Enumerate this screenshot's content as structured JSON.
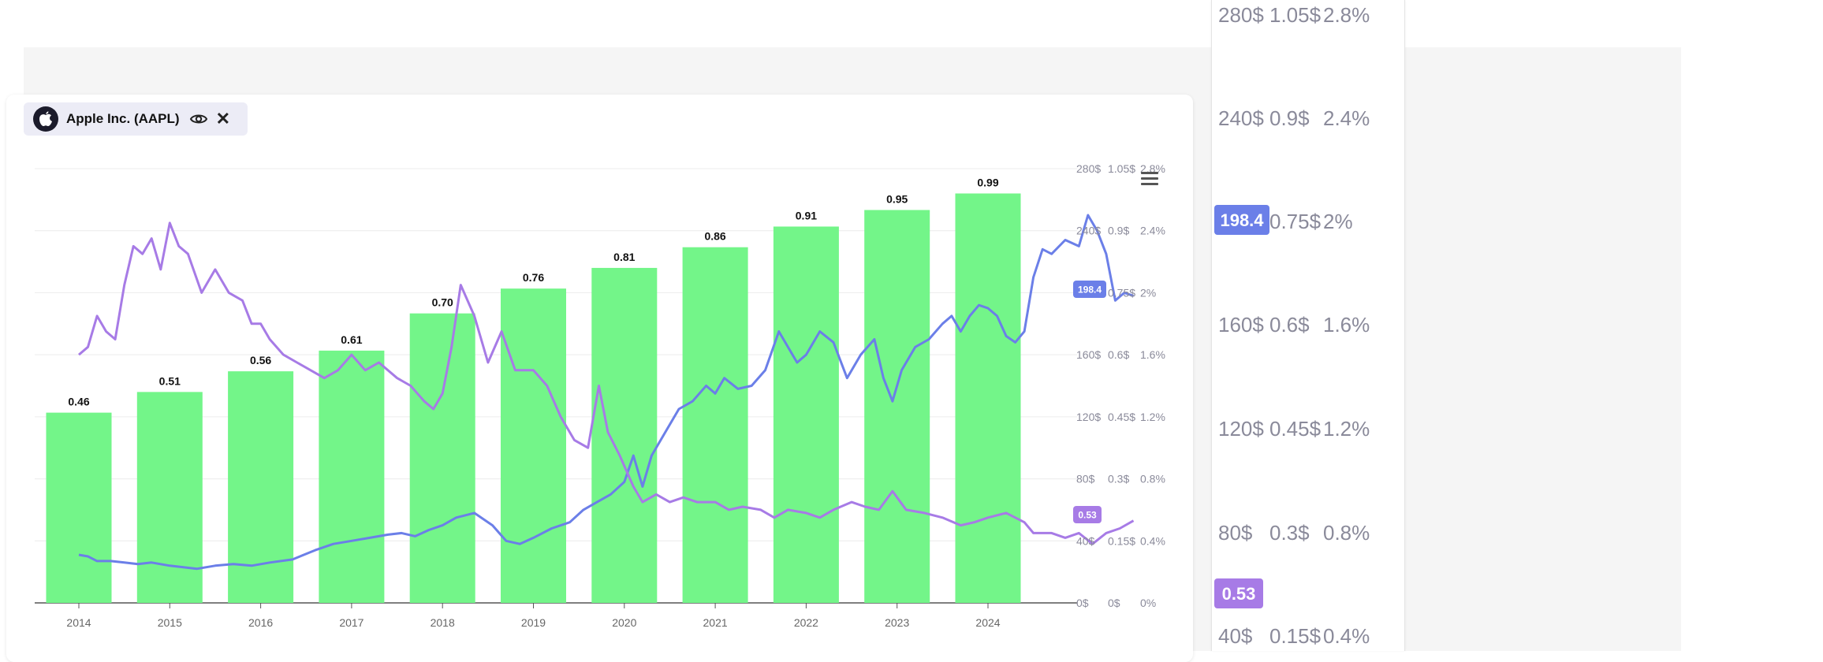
{
  "instrument": {
    "name": "Apple Inc. (AAPL)",
    "logo_icon": "apple-logo-icon",
    "visibility_icon": "eye-icon",
    "close_symbol": "✕"
  },
  "chart_data": {
    "type": "bar-line-combo",
    "categories": [
      "2014",
      "2015",
      "2016",
      "2017",
      "2018",
      "2019",
      "2020",
      "2021",
      "2022",
      "2023",
      "2024"
    ],
    "series": [
      {
        "kind": "bar",
        "axis": "dollars",
        "color": "#73f589",
        "values": [
          0.46,
          0.51,
          0.56,
          0.61,
          0.7,
          0.76,
          0.81,
          0.86,
          0.91,
          0.95,
          0.99
        ],
        "labels": [
          "0.46",
          "0.51",
          "0.56",
          "0.61",
          "0.70",
          "0.76",
          "0.81",
          "0.86",
          "0.91",
          "0.95",
          "0.99"
        ]
      },
      {
        "kind": "line",
        "axis": "price",
        "color": "#6b7fe8",
        "last_value_label": "198.4",
        "points": [
          [
            2014.0,
            31
          ],
          [
            2014.1,
            30
          ],
          [
            2014.2,
            27
          ],
          [
            2014.35,
            27
          ],
          [
            2014.5,
            26
          ],
          [
            2014.65,
            25
          ],
          [
            2014.8,
            26
          ],
          [
            2015.0,
            24
          ],
          [
            2015.15,
            23
          ],
          [
            2015.3,
            22
          ],
          [
            2015.5,
            24
          ],
          [
            2015.7,
            25
          ],
          [
            2015.9,
            24
          ],
          [
            2016.1,
            26
          ],
          [
            2016.35,
            28
          ],
          [
            2016.6,
            34
          ],
          [
            2016.8,
            38
          ],
          [
            2017.0,
            40
          ],
          [
            2017.2,
            42
          ],
          [
            2017.4,
            44
          ],
          [
            2017.55,
            45
          ],
          [
            2017.7,
            43
          ],
          [
            2017.85,
            47
          ],
          [
            2018.0,
            50
          ],
          [
            2018.15,
            55
          ],
          [
            2018.35,
            58
          ],
          [
            2018.55,
            50
          ],
          [
            2018.7,
            40
          ],
          [
            2018.85,
            38
          ],
          [
            2019.0,
            42
          ],
          [
            2019.2,
            48
          ],
          [
            2019.4,
            52
          ],
          [
            2019.55,
            60
          ],
          [
            2019.7,
            65
          ],
          [
            2019.85,
            70
          ],
          [
            2020.0,
            78
          ],
          [
            2020.1,
            95
          ],
          [
            2020.2,
            75
          ],
          [
            2020.3,
            95
          ],
          [
            2020.45,
            110
          ],
          [
            2020.6,
            125
          ],
          [
            2020.75,
            130
          ],
          [
            2020.9,
            140
          ],
          [
            2021.0,
            135
          ],
          [
            2021.1,
            145
          ],
          [
            2021.25,
            138
          ],
          [
            2021.4,
            140
          ],
          [
            2021.55,
            150
          ],
          [
            2021.7,
            175
          ],
          [
            2021.8,
            165
          ],
          [
            2021.9,
            155
          ],
          [
            2022.0,
            160
          ],
          [
            2022.15,
            175
          ],
          [
            2022.3,
            168
          ],
          [
            2022.45,
            145
          ],
          [
            2022.6,
            160
          ],
          [
            2022.75,
            170
          ],
          [
            2022.85,
            145
          ],
          [
            2022.95,
            130
          ],
          [
            2023.05,
            150
          ],
          [
            2023.2,
            165
          ],
          [
            2023.35,
            170
          ],
          [
            2023.5,
            180
          ],
          [
            2023.6,
            185
          ],
          [
            2023.7,
            175
          ],
          [
            2023.8,
            185
          ],
          [
            2023.9,
            192
          ],
          [
            2024.0,
            190
          ],
          [
            2024.1,
            185
          ],
          [
            2024.2,
            172
          ],
          [
            2024.3,
            168
          ],
          [
            2024.4,
            175
          ],
          [
            2024.5,
            210
          ],
          [
            2024.6,
            228
          ],
          [
            2024.7,
            225
          ],
          [
            2024.85,
            234
          ],
          [
            2025.0,
            230
          ],
          [
            2025.1,
            250
          ],
          [
            2025.2,
            240
          ],
          [
            2025.3,
            225
          ],
          [
            2025.4,
            195
          ],
          [
            2025.5,
            200
          ],
          [
            2025.6,
            198
          ]
        ]
      },
      {
        "kind": "line",
        "axis": "percent",
        "color": "#a77be6",
        "last_value_label": "0.53",
        "points": [
          [
            2014.0,
            1.6
          ],
          [
            2014.1,
            1.65
          ],
          [
            2014.2,
            1.85
          ],
          [
            2014.3,
            1.75
          ],
          [
            2014.4,
            1.7
          ],
          [
            2014.5,
            2.05
          ],
          [
            2014.6,
            2.3
          ],
          [
            2014.7,
            2.25
          ],
          [
            2014.8,
            2.35
          ],
          [
            2014.9,
            2.15
          ],
          [
            2015.0,
            2.45
          ],
          [
            2015.1,
            2.3
          ],
          [
            2015.2,
            2.25
          ],
          [
            2015.35,
            2.0
          ],
          [
            2015.5,
            2.15
          ],
          [
            2015.65,
            2.0
          ],
          [
            2015.8,
            1.95
          ],
          [
            2015.9,
            1.8
          ],
          [
            2016.0,
            1.8
          ],
          [
            2016.1,
            1.7
          ],
          [
            2016.25,
            1.6
          ],
          [
            2016.4,
            1.55
          ],
          [
            2016.55,
            1.5
          ],
          [
            2016.7,
            1.45
          ],
          [
            2016.85,
            1.5
          ],
          [
            2017.0,
            1.6
          ],
          [
            2017.15,
            1.5
          ],
          [
            2017.3,
            1.55
          ],
          [
            2017.5,
            1.45
          ],
          [
            2017.65,
            1.4
          ],
          [
            2017.8,
            1.3
          ],
          [
            2017.9,
            1.25
          ],
          [
            2018.0,
            1.35
          ],
          [
            2018.1,
            1.65
          ],
          [
            2018.2,
            2.05
          ],
          [
            2018.35,
            1.85
          ],
          [
            2018.5,
            1.55
          ],
          [
            2018.65,
            1.75
          ],
          [
            2018.8,
            1.5
          ],
          [
            2019.0,
            1.5
          ],
          [
            2019.15,
            1.4
          ],
          [
            2019.3,
            1.2
          ],
          [
            2019.45,
            1.05
          ],
          [
            2019.6,
            1.0
          ],
          [
            2019.72,
            1.4
          ],
          [
            2019.82,
            1.1
          ],
          [
            2019.95,
            0.95
          ],
          [
            2020.1,
            0.75
          ],
          [
            2020.2,
            0.65
          ],
          [
            2020.35,
            0.7
          ],
          [
            2020.5,
            0.65
          ],
          [
            2020.65,
            0.68
          ],
          [
            2020.8,
            0.65
          ],
          [
            2021.0,
            0.65
          ],
          [
            2021.15,
            0.6
          ],
          [
            2021.3,
            0.62
          ],
          [
            2021.5,
            0.6
          ],
          [
            2021.65,
            0.55
          ],
          [
            2021.8,
            0.6
          ],
          [
            2022.0,
            0.58
          ],
          [
            2022.15,
            0.55
          ],
          [
            2022.3,
            0.6
          ],
          [
            2022.5,
            0.65
          ],
          [
            2022.65,
            0.62
          ],
          [
            2022.8,
            0.6
          ],
          [
            2022.95,
            0.72
          ],
          [
            2023.1,
            0.6
          ],
          [
            2023.3,
            0.58
          ],
          [
            2023.5,
            0.55
          ],
          [
            2023.7,
            0.5
          ],
          [
            2023.85,
            0.52
          ],
          [
            2024.0,
            0.55
          ],
          [
            2024.2,
            0.58
          ],
          [
            2024.4,
            0.52
          ],
          [
            2024.5,
            0.45
          ],
          [
            2024.7,
            0.45
          ],
          [
            2024.85,
            0.42
          ],
          [
            2025.0,
            0.45
          ],
          [
            2025.15,
            0.38
          ],
          [
            2025.3,
            0.45
          ],
          [
            2025.45,
            0.48
          ],
          [
            2025.6,
            0.53
          ]
        ]
      }
    ],
    "axes": {
      "price": {
        "min": 0,
        "max": 280,
        "ticks": [
          "0$",
          "40$",
          "80$",
          "120$",
          "160$",
          "200$",
          "240$",
          "280$"
        ]
      },
      "dollars": {
        "min": 0,
        "max": 1.05,
        "ticks": [
          "0$",
          "0.15$",
          "0.3$",
          "0.45$",
          "0.6$",
          "0.75$",
          "0.9$",
          "1.05$"
        ]
      },
      "percent": {
        "min": 0,
        "max": 2.8,
        "ticks": [
          "0%",
          "0.4%",
          "0.8%",
          "1.2%",
          "1.6%",
          "2%",
          "2.4%",
          "2.8%"
        ]
      }
    },
    "zoom_axis": {
      "price_ticks": [
        "280$",
        "240$",
        "160$",
        "120$",
        "80$",
        "40$"
      ],
      "dollar_ticks": [
        "1.05$",
        "0.9$",
        "0.75$",
        "0.6$",
        "0.45$",
        "0.3$",
        "0.15$"
      ],
      "percent_ticks": [
        "2.8%",
        "2.4%",
        "2%",
        "1.6%",
        "1.2%",
        "0.8%",
        "0.4%"
      ],
      "price_label": "198.4",
      "percent_label": "0.53"
    },
    "grid": true
  }
}
